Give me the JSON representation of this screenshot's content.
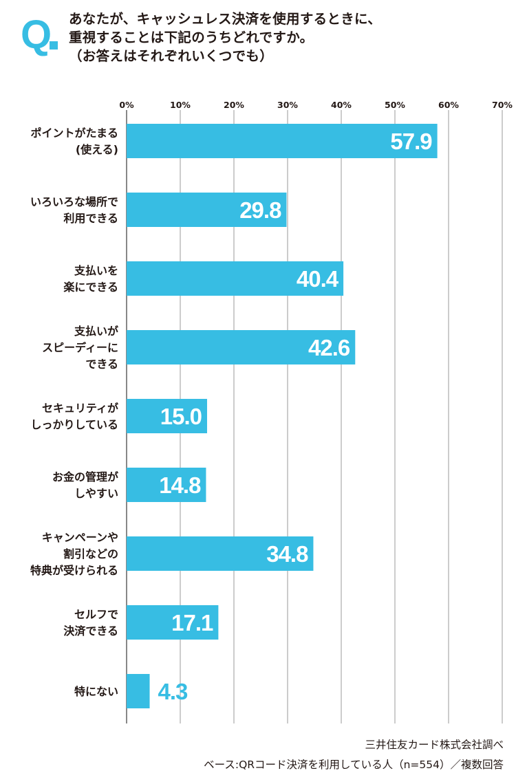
{
  "question": {
    "mark": "Q",
    "lines": [
      "あなたが、キャッシュレス決済を使用するときに、",
      "重視することは下記のうちどれですか。",
      "（お答えはそれぞれいくつでも）"
    ]
  },
  "chart_data": {
    "type": "bar",
    "orientation": "horizontal",
    "categories": [
      [
        "ポイントがたまる",
        "(使える)"
      ],
      [
        "いろいろな場所で",
        "利用できる"
      ],
      [
        "支払いを",
        "楽にできる"
      ],
      [
        "支払いが",
        "スピーディーに",
        "できる"
      ],
      [
        "セキュリティが",
        "しっかりしている"
      ],
      [
        "お金の管理が",
        "しやすい"
      ],
      [
        "キャンペーンや",
        "割引などの",
        "特典が受けられる"
      ],
      [
        "セルフで",
        "決済できる"
      ],
      [
        "特にない"
      ]
    ],
    "values": [
      57.9,
      29.8,
      40.4,
      42.6,
      15.0,
      14.8,
      34.8,
      17.1,
      4.3
    ],
    "value_labels": [
      "57.9",
      "29.8",
      "40.4",
      "42.6",
      "15.0",
      "14.8",
      "34.8",
      "17.1",
      "4.3"
    ],
    "xlim": [
      0,
      70
    ],
    "ticks": [
      "0%",
      "10%",
      "20%",
      "30%",
      "40%",
      "50%",
      "60%",
      "70%"
    ],
    "grid": true,
    "bar_color": "#37bde3",
    "grid_color": "#9a9a9a"
  },
  "footer": {
    "credit": "三井住友カード株式会社調べ",
    "base": "ベース:QRコード決済を利用している人（n=554）／複数回答"
  }
}
